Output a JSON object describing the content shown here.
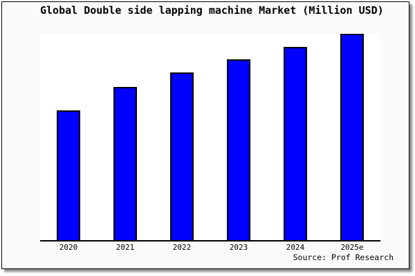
{
  "colors": {
    "bar_fill": "#0000ff",
    "bar_edge": "#000000",
    "canvas_bg": "#fafafa",
    "plot_bg": "#ffffff",
    "frame_border": "#000000",
    "axis": "#000000",
    "text": "#000000"
  },
  "chart_data": {
    "type": "bar",
    "title": "Global Double side lapping machine Market (Million USD)",
    "categories": [
      "2020",
      "2021",
      "2022",
      "2023",
      "2024",
      "2025e"
    ],
    "values": [
      62.9,
      74.2,
      81.3,
      87.6,
      93.8,
      100
    ],
    "xlabel": "",
    "ylabel": "",
    "ylim": [
      0,
      100
    ],
    "y_tick_labels": [],
    "grid": false,
    "legend": false,
    "annotation": "Source: Prof Research"
  }
}
